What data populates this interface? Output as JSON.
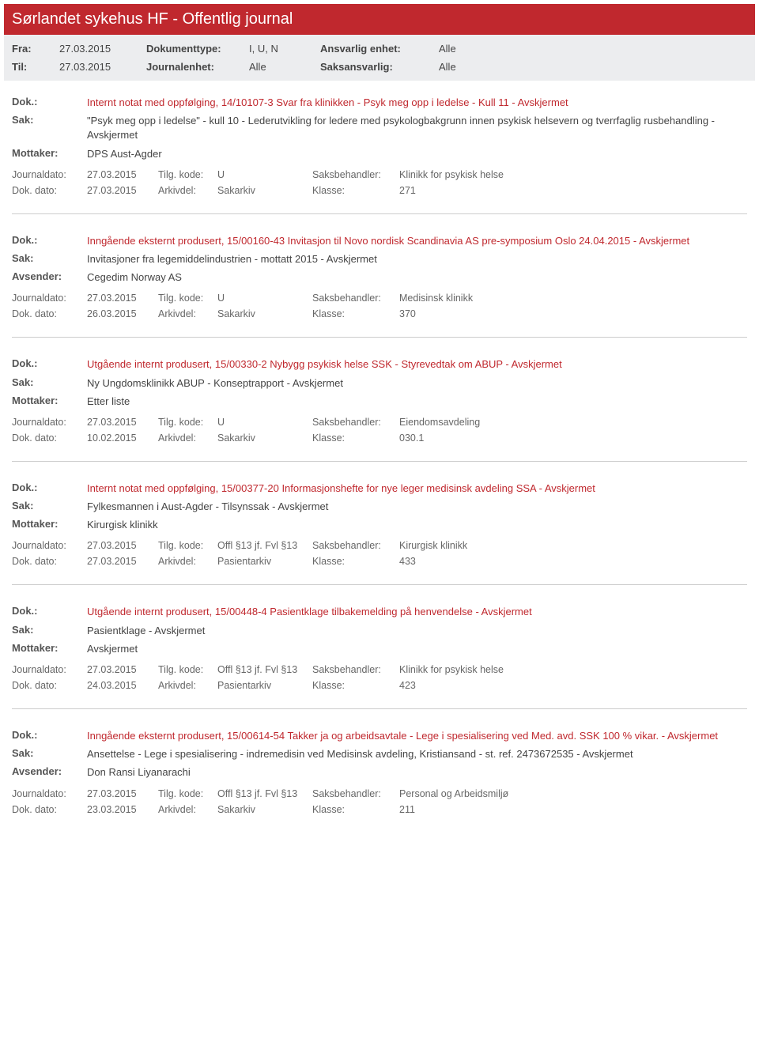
{
  "colors": {
    "header_bg": "#c0282e",
    "header_text": "#ffffff",
    "subheader_bg": "#ecedef",
    "dok_text": "#c0282e",
    "body_text": "#444444",
    "meta_text": "#666666"
  },
  "header": {
    "title": "Sørlandet sykehus HF - Offentlig journal"
  },
  "filter": {
    "fra_label": "Fra:",
    "fra_value": "27.03.2015",
    "til_label": "Til:",
    "til_value": "27.03.2015",
    "doktype_label": "Dokumenttype:",
    "doktype_value": "I, U, N",
    "journalenhet_label": "Journalenhet:",
    "journalenhet_value": "Alle",
    "ansvarlig_label": "Ansvarlig enhet:",
    "ansvarlig_value": "Alle",
    "saksansvarlig_label": "Saksansvarlig:",
    "saksansvarlig_value": "Alle"
  },
  "labels": {
    "dok": "Dok.:",
    "sak": "Sak:",
    "mottaker": "Mottaker:",
    "avsender": "Avsender:",
    "journaldato": "Journaldato:",
    "dokdato": "Dok. dato:",
    "tilgkode": "Tilg. kode:",
    "arkivdel": "Arkivdel:",
    "saksbehandler": "Saksbehandler:",
    "klasse": "Klasse:"
  },
  "entries": [
    {
      "dok": "Internt notat med oppfølging, 14/10107-3 Svar fra klinikken - Psyk meg opp i ledelse - Kull 11 - Avskjermet",
      "sak": "\"Psyk meg opp i ledelse\" - kull 10 - Lederutvikling for ledere med psykologbakgrunn innen psykisk helsevern og tverrfaglig rusbehandling - Avskjermet",
      "party_label": "Mottaker:",
      "party_value": "DPS Aust-Agder",
      "journaldato": "27.03.2015",
      "tilgkode": "U",
      "saksbehandler": "Klinikk for psykisk helse",
      "dokdato": "27.03.2015",
      "arkivdel": "Sakarkiv",
      "klasse": "271"
    },
    {
      "dok": "Inngående eksternt produsert, 15/00160-43 Invitasjon til Novo nordisk Scandinavia AS pre-symposium Oslo 24.04.2015 - Avskjermet",
      "sak": "Invitasjoner fra legemiddelindustrien - mottatt 2015 - Avskjermet",
      "party_label": "Avsender:",
      "party_value": "Cegedim Norway AS",
      "journaldato": "27.03.2015",
      "tilgkode": "U",
      "saksbehandler": "Medisinsk klinikk",
      "dokdato": "26.03.2015",
      "arkivdel": "Sakarkiv",
      "klasse": "370"
    },
    {
      "dok": "Utgående internt produsert, 15/00330-2 Nybygg psykisk helse SSK - Styrevedtak om ABUP - Avskjermet",
      "sak": "Ny Ungdomsklinikk ABUP - Konseptrapport - Avskjermet",
      "party_label": "Mottaker:",
      "party_value": "Etter liste",
      "journaldato": "27.03.2015",
      "tilgkode": "U",
      "saksbehandler": "Eiendomsavdeling",
      "dokdato": "10.02.2015",
      "arkivdel": "Sakarkiv",
      "klasse": "030.1"
    },
    {
      "dok": "Internt notat med oppfølging, 15/00377-20 Informasjonshefte for nye leger medisinsk avdeling SSA - Avskjermet",
      "sak": "Fylkesmannen i Aust-Agder  - Tilsynssak - Avskjermet",
      "party_label": "Mottaker:",
      "party_value": "Kirurgisk klinikk",
      "journaldato": "27.03.2015",
      "tilgkode": "Offl §13 jf. Fvl §13",
      "saksbehandler": "Kirurgisk klinikk",
      "dokdato": "27.03.2015",
      "arkivdel": "Pasientarkiv",
      "klasse": "433"
    },
    {
      "dok": "Utgående internt produsert, 15/00448-4 Pasientklage tilbakemelding på henvendelse - Avskjermet",
      "sak": "Pasientklage - Avskjermet",
      "party_label": "Mottaker:",
      "party_value": "Avskjermet",
      "journaldato": "27.03.2015",
      "tilgkode": "Offl §13 jf. Fvl §13",
      "saksbehandler": "Klinikk for psykisk helse",
      "dokdato": "24.03.2015",
      "arkivdel": "Pasientarkiv",
      "klasse": "423"
    },
    {
      "dok": "Inngående eksternt produsert, 15/00614-54 Takker ja og arbeidsavtale - Lege i spesialisering ved Med. avd. SSK 100 % vikar. - Avskjermet",
      "sak": "Ansettelse - Lege i spesialisering - indremedisin ved Medisinsk avdeling, Kristiansand - st. ref. 2473672535 - Avskjermet",
      "party_label": "Avsender:",
      "party_value": "Don Ransi Liyanarachi",
      "journaldato": "27.03.2015",
      "tilgkode": "Offl §13 jf. Fvl §13",
      "saksbehandler": "Personal og Arbeidsmiljø",
      "dokdato": "23.03.2015",
      "arkivdel": "Sakarkiv",
      "klasse": "211"
    }
  ]
}
